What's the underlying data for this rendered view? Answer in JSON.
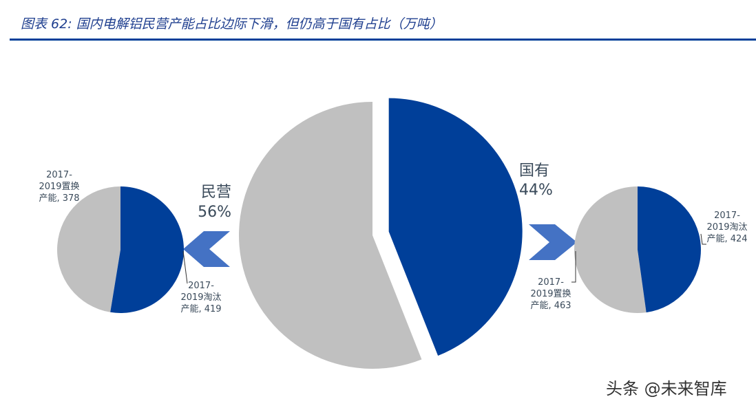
{
  "figure_title": "图表 62:  国内电解铝民营产能占比边际下滑，但仍高于国有占比（万吨）",
  "watermark": "头条 @未来智库",
  "colors": {
    "blue": "#003f99",
    "grey": "#c0c0c0",
    "arrow": "#4472c4",
    "label": "#3a4a5a"
  },
  "chart_data": [
    {
      "type": "pie",
      "title": "",
      "slices": [
        {
          "key": "state",
          "label": "国有",
          "percent_label": "44%",
          "value": 44,
          "color": "#003f99",
          "exploded": true
        },
        {
          "key": "private",
          "label": "民营",
          "percent_label": "56%",
          "value": 56,
          "color": "#c0c0c0"
        }
      ]
    },
    {
      "type": "pie",
      "title": "",
      "slices": [
        {
          "key": "eliminated",
          "label_lines": [
            "2017-",
            "2019淘汰",
            "产能, 419"
          ],
          "value": 419,
          "color": "#003f99"
        },
        {
          "key": "replacement",
          "label_lines": [
            "2017-",
            "2019置换",
            "产能, 378"
          ],
          "value": 378,
          "color": "#c0c0c0"
        }
      ]
    },
    {
      "type": "pie",
      "title": "",
      "slices": [
        {
          "key": "eliminated",
          "label_lines": [
            "2017-",
            "2019淘汰",
            "产能, 424"
          ],
          "value": 424,
          "color": "#003f99"
        },
        {
          "key": "replacement",
          "label_lines": [
            "2017-",
            "2019置换",
            "产能, 463"
          ],
          "value": 463,
          "color": "#c0c0c0"
        }
      ]
    }
  ]
}
